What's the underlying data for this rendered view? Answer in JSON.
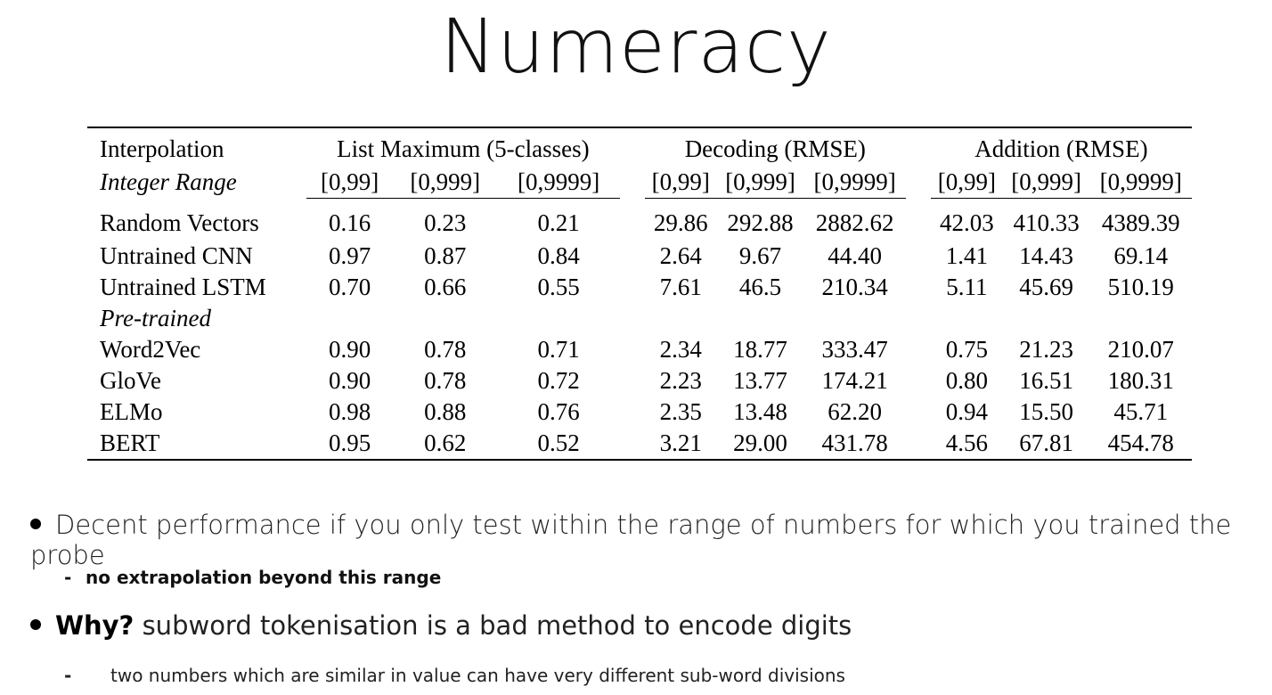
{
  "title": "Numeracy",
  "table": {
    "group_headers": {
      "interpolation": "Interpolation",
      "list_maximum": "List Maximum (5-classes)",
      "decoding": "Decoding (RMSE)",
      "addition": "Addition (RMSE)"
    },
    "range_label": "Integer Range",
    "ranges": [
      "[0,99]",
      "[0,999]",
      "[0,9999]",
      "[0,99]",
      "[0,999]",
      "[0,9999]",
      "[0,99]",
      "[0,999]",
      "[0,9999]"
    ],
    "section_label": "Pre-trained",
    "rows": [
      {
        "name": "Random Vectors",
        "values": [
          "0.16",
          "0.23",
          "0.21",
          "29.86",
          "292.88",
          "2882.62",
          "42.03",
          "410.33",
          "4389.39"
        ]
      },
      {
        "name": "Untrained CNN",
        "values": [
          "0.97",
          "0.87",
          "0.84",
          "2.64",
          "9.67",
          "44.40",
          "1.41",
          "14.43",
          "69.14"
        ]
      },
      {
        "name": "Untrained LSTM",
        "values": [
          "0.70",
          "0.66",
          "0.55",
          "7.61",
          "46.5",
          "210.34",
          "5.11",
          "45.69",
          "510.19"
        ]
      },
      {
        "name": "Word2Vec",
        "values": [
          "0.90",
          "0.78",
          "0.71",
          "2.34",
          "18.77",
          "333.47",
          "0.75",
          "21.23",
          "210.07"
        ]
      },
      {
        "name": "GloVe",
        "values": [
          "0.90",
          "0.78",
          "0.72",
          "2.23",
          "13.77",
          "174.21",
          "0.80",
          "16.51",
          "180.31"
        ]
      },
      {
        "name": "ELMo",
        "values": [
          "0.98",
          "0.88",
          "0.76",
          "2.35",
          "13.48",
          "62.20",
          "0.94",
          "15.50",
          "45.71"
        ]
      },
      {
        "name": "BERT",
        "values": [
          "0.95",
          "0.62",
          "0.52",
          "3.21",
          "29.00",
          "431.78",
          "4.56",
          "67.81",
          "454.78"
        ]
      }
    ]
  },
  "bullets": [
    {
      "bold": "",
      "text": "Decent performance if you only test within the range of numbers for which you trained the probe",
      "sub": "no extrapolation beyond this range"
    },
    {
      "bold": "Why?",
      "text": " subword tokenisation is a bad method to encode digits",
      "sub": "two numbers which are similar in value can have very different sub-word divisions"
    }
  ]
}
